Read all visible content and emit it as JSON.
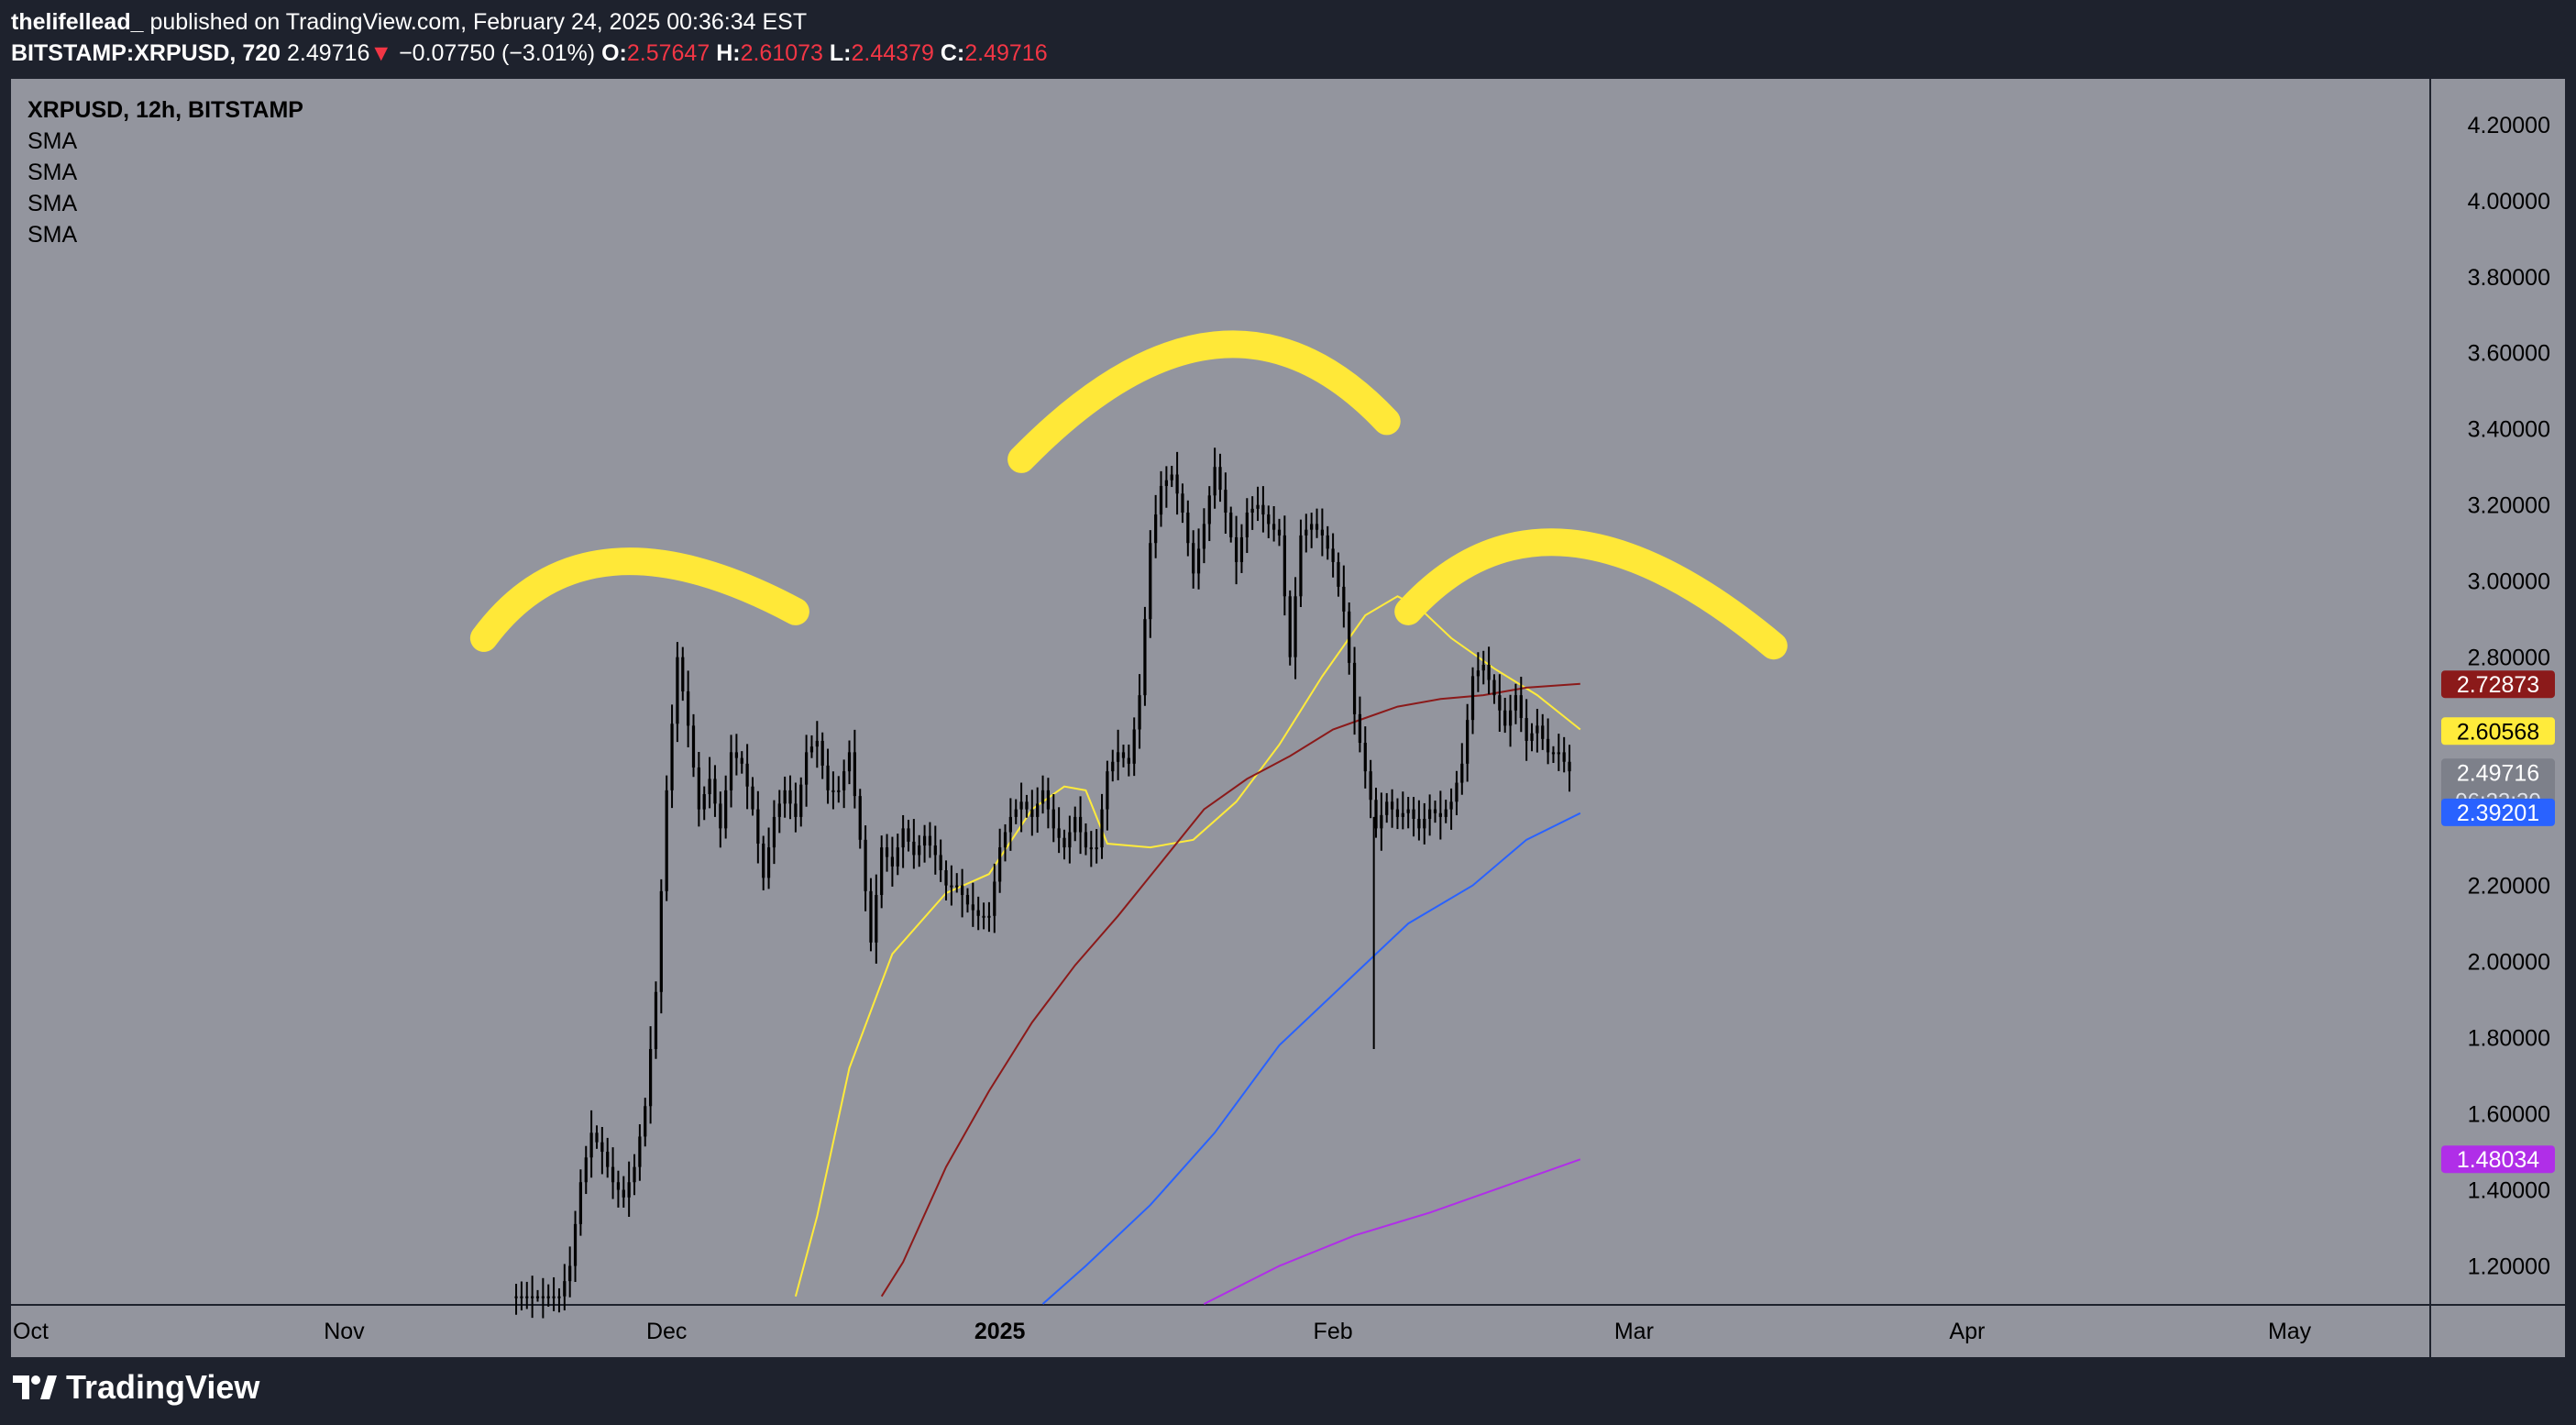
{
  "header": {
    "author": "thelifellead_",
    "published_text": "published on TradingView.com, February 24, 2025 00:36:34 EST",
    "symbol_line": "BITSTAMP:XRPUSD, 720",
    "last": "2.49716",
    "change": "−0.07750 (−3.01%)",
    "o_label": "O:",
    "o": "2.57647",
    "h_label": "H:",
    "h": "2.61073",
    "l_label": "L:",
    "l": "2.44379",
    "c_label": "C:",
    "c": "2.49716"
  },
  "legend": {
    "title": "XRPUSD, 12h, BITSTAMP",
    "indicators": [
      "SMA",
      "SMA",
      "SMA",
      "SMA"
    ]
  },
  "footer": {
    "brand": "TradingView"
  },
  "colors": {
    "plot_bg": "#93959e",
    "candle": "#000000",
    "sma_yellow": "#ffeb3b",
    "sma_red": "#8b1a1a",
    "sma_blue": "#2962ff",
    "sma_purple": "#b02ee8",
    "annotation": "#ffe838"
  },
  "chart_data": {
    "type": "candlestick",
    "xlabel": "",
    "ylabel": "",
    "x_tick_labels": [
      "Oct",
      "Nov",
      "Dec",
      "2025",
      "Feb",
      "Mar",
      "Apr",
      "May"
    ],
    "x_tick_bold": [
      false,
      false,
      false,
      true,
      false,
      false,
      false,
      false
    ],
    "y_ticks": [
      "4.20000",
      "4.00000",
      "3.80000",
      "3.60000",
      "3.40000",
      "3.20000",
      "3.00000",
      "2.80000",
      "2.20000",
      "2.00000",
      "1.80000",
      "1.60000",
      "1.40000",
      "1.20000"
    ],
    "ylim": [
      1.1,
      4.32
    ],
    "xlim_days_from_oct1": [
      0,
      225
    ],
    "price_labels": [
      {
        "text": "2.72873",
        "value": 2.72873,
        "bg": "#8b1a1a",
        "fg": "#ffffff"
      },
      {
        "text": "2.60568",
        "value": 2.60568,
        "bg": "#ffeb3b",
        "fg": "#000000"
      },
      {
        "text": "2.49716",
        "value": 2.49716,
        "bg": "#7d808a",
        "fg": "#ffffff",
        "sub": "06:23:30"
      },
      {
        "text": "2.39201",
        "value": 2.39201,
        "bg": "#2962ff",
        "fg": "#ffffff"
      },
      {
        "text": "1.48034",
        "value": 1.48034,
        "bg": "#b02ee8",
        "fg": "#ffffff"
      }
    ],
    "candle_series": {
      "name": "XRPUSD",
      "keypoints": [
        [
          47,
          1.12
        ],
        [
          49,
          1.12
        ],
        [
          51,
          1.12
        ],
        [
          52,
          1.2
        ],
        [
          53,
          1.42
        ],
        [
          54,
          1.55
        ],
        [
          55,
          1.5
        ],
        [
          56,
          1.42
        ],
        [
          57,
          1.38
        ],
        [
          58,
          1.46
        ],
        [
          59,
          1.62
        ],
        [
          60,
          1.92
        ],
        [
          61,
          2.45
        ],
        [
          62,
          2.8
        ],
        [
          63,
          2.62
        ],
        [
          64,
          2.4
        ],
        [
          65,
          2.48
        ],
        [
          66,
          2.35
        ],
        [
          67,
          2.55
        ],
        [
          68,
          2.52
        ],
        [
          69,
          2.4
        ],
        [
          70,
          2.22
        ],
        [
          71,
          2.38
        ],
        [
          72,
          2.45
        ],
        [
          73,
          2.38
        ],
        [
          74,
          2.55
        ],
        [
          75,
          2.58
        ],
        [
          76,
          2.45
        ],
        [
          77,
          2.45
        ],
        [
          78,
          2.55
        ],
        [
          79,
          2.32
        ],
        [
          80,
          2.05
        ],
        [
          81,
          2.3
        ],
        [
          82,
          2.25
        ],
        [
          83,
          2.35
        ],
        [
          84,
          2.28
        ],
        [
          85,
          2.33
        ],
        [
          86,
          2.28
        ],
        [
          87,
          2.2
        ],
        [
          88,
          2.2
        ],
        [
          89,
          2.15
        ],
        [
          90,
          2.12
        ],
        [
          91,
          2.12
        ],
        [
          92,
          2.3
        ],
        [
          93,
          2.38
        ],
        [
          94,
          2.42
        ],
        [
          95,
          2.38
        ],
        [
          96,
          2.45
        ],
        [
          97,
          2.35
        ],
        [
          98,
          2.3
        ],
        [
          99,
          2.38
        ],
        [
          100,
          2.3
        ],
        [
          101,
          2.3
        ],
        [
          102,
          2.5
        ],
        [
          103,
          2.55
        ],
        [
          104,
          2.52
        ],
        [
          105,
          2.7
        ],
        [
          106,
          3.1
        ],
        [
          107,
          3.25
        ],
        [
          108,
          3.28
        ],
        [
          109,
          3.18
        ],
        [
          110,
          3.02
        ],
        [
          111,
          3.15
        ],
        [
          112,
          3.3
        ],
        [
          113,
          3.18
        ],
        [
          114,
          3.05
        ],
        [
          115,
          3.18
        ],
        [
          116,
          3.2
        ],
        [
          117,
          3.15
        ],
        [
          118,
          3.12
        ],
        [
          119,
          2.8
        ],
        [
          120,
          3.12
        ],
        [
          121,
          3.15
        ],
        [
          122,
          3.12
        ],
        [
          123,
          3.05
        ],
        [
          124,
          2.92
        ],
        [
          125,
          2.65
        ],
        [
          126,
          2.5
        ],
        [
          127,
          2.35
        ],
        [
          128,
          2.42
        ],
        [
          129,
          2.38
        ],
        [
          130,
          2.4
        ],
        [
          131,
          2.35
        ],
        [
          132,
          2.4
        ],
        [
          133,
          2.38
        ],
        [
          134,
          2.42
        ],
        [
          135,
          2.52
        ],
        [
          136,
          2.75
        ],
        [
          137,
          2.78
        ],
        [
          138,
          2.7
        ],
        [
          139,
          2.62
        ],
        [
          140,
          2.7
        ],
        [
          141,
          2.58
        ],
        [
          142,
          2.62
        ],
        [
          143,
          2.55
        ],
        [
          144,
          2.55
        ],
        [
          145,
          2.5
        ]
      ],
      "special_wicks": [
        {
          "day": 126.8,
          "low": 1.77
        }
      ]
    },
    "series": [
      {
        "color": "#ffeb3b",
        "points": [
          [
            73,
            1.12
          ],
          [
            75,
            1.33
          ],
          [
            78,
            1.72
          ],
          [
            82,
            2.02
          ],
          [
            87,
            2.18
          ],
          [
            91,
            2.23
          ],
          [
            95,
            2.4
          ],
          [
            98,
            2.46
          ],
          [
            100,
            2.45
          ],
          [
            102,
            2.31
          ],
          [
            106,
            2.3
          ],
          [
            110,
            2.32
          ],
          [
            114,
            2.42
          ],
          [
            118,
            2.57
          ],
          [
            122,
            2.75
          ],
          [
            126,
            2.91
          ],
          [
            129,
            2.96
          ],
          [
            131,
            2.93
          ],
          [
            134,
            2.85
          ],
          [
            138,
            2.77
          ],
          [
            142,
            2.7
          ],
          [
            146,
            2.61
          ]
        ]
      },
      {
        "color": "#8b1a1a",
        "points": [
          [
            81,
            1.12
          ],
          [
            83,
            1.21
          ],
          [
            87,
            1.46
          ],
          [
            91,
            1.66
          ],
          [
            95,
            1.84
          ],
          [
            99,
            1.99
          ],
          [
            103,
            2.12
          ],
          [
            107,
            2.26
          ],
          [
            111,
            2.4
          ],
          [
            115,
            2.48
          ],
          [
            119,
            2.54
          ],
          [
            123,
            2.61
          ],
          [
            126,
            2.64
          ],
          [
            129,
            2.67
          ],
          [
            133,
            2.69
          ],
          [
            137,
            2.7
          ],
          [
            141,
            2.72
          ],
          [
            146,
            2.73
          ]
        ]
      },
      {
        "color": "#2962ff",
        "points": [
          [
            96,
            1.1
          ],
          [
            100,
            1.2
          ],
          [
            106,
            1.36
          ],
          [
            112,
            1.55
          ],
          [
            118,
            1.78
          ],
          [
            124,
            1.94
          ],
          [
            130,
            2.1
          ],
          [
            136,
            2.2
          ],
          [
            141,
            2.32
          ],
          [
            146,
            2.39
          ]
        ]
      },
      {
        "color": "#b02ee8",
        "points": [
          [
            111,
            1.1
          ],
          [
            118,
            1.2
          ],
          [
            125,
            1.28
          ],
          [
            132,
            1.34
          ],
          [
            139,
            1.41
          ],
          [
            146,
            1.48
          ]
        ]
      }
    ],
    "annotations": [
      {
        "type": "arc",
        "color": "#ffe838",
        "points": [
          [
            44,
            2.85
          ],
          [
            56,
            3.05
          ],
          [
            73,
            2.92
          ]
        ]
      },
      {
        "type": "arc",
        "color": "#ffe838",
        "points": [
          [
            94,
            3.32
          ],
          [
            112,
            3.62
          ],
          [
            128,
            3.42
          ]
        ]
      },
      {
        "type": "arc",
        "color": "#ffe838",
        "points": [
          [
            130,
            2.92
          ],
          [
            145,
            3.1
          ],
          [
            164,
            2.83
          ]
        ]
      }
    ]
  }
}
